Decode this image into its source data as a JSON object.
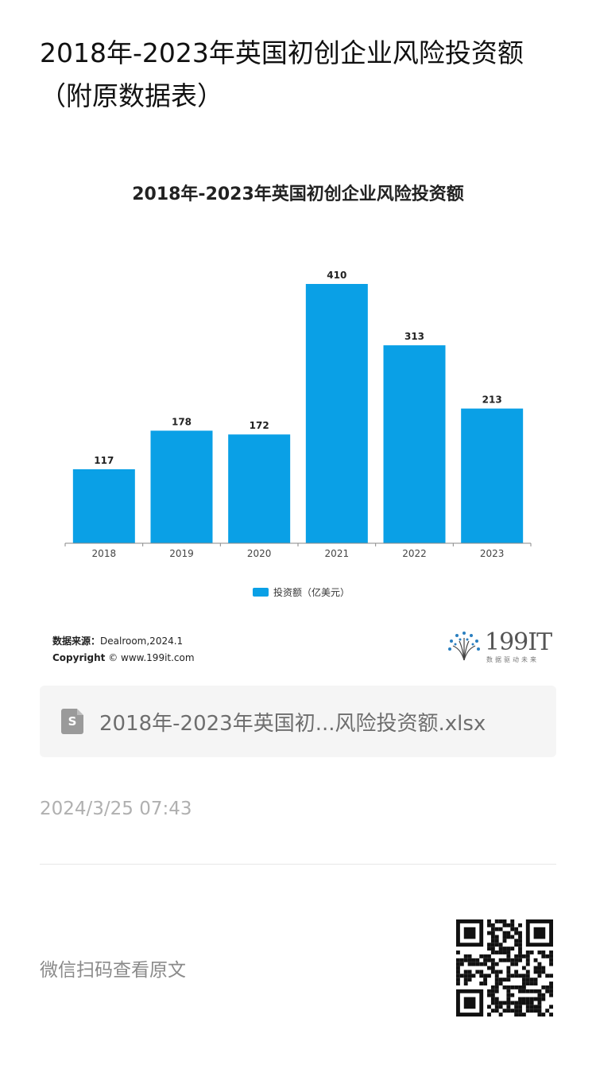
{
  "article": {
    "title": "2018年-2023年英国初创企业风险投资额（附原数据表）"
  },
  "chart_data": {
    "type": "bar",
    "title": "2018年-2023年英国初创企业风险投资额",
    "categories": [
      "2018",
      "2019",
      "2020",
      "2021",
      "2022",
      "2023"
    ],
    "series": [
      {
        "name": "投资额（亿美元）",
        "values": [
          117,
          178,
          172,
          410,
          313,
          213
        ],
        "color": "#0aa0e6"
      }
    ],
    "ylim": [
      0,
      410
    ],
    "grid": false,
    "legend": "bottom"
  },
  "chart_footer": {
    "source_label": "数据来源：",
    "source_value": "Dealroom,2024.1",
    "copyright_label": "Copyright",
    "copyright_value": "© www.199it.com"
  },
  "brand": {
    "name": "199IT",
    "slogan": "数据驱动未来"
  },
  "attachment": {
    "icon": "spreadsheet-file-icon",
    "icon_letter": "S",
    "filename": "2018年-2023年英国初...风险投资额.xlsx"
  },
  "post_time": "2024/3/25 07:43",
  "scan_hint": "微信扫码查看原文",
  "qr": {
    "icon": "qr-code-icon"
  }
}
